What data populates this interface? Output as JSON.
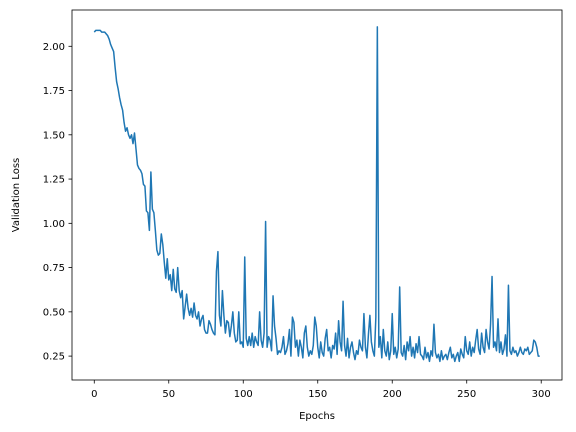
{
  "chart_data": {
    "type": "line",
    "xlabel": "Epochs",
    "ylabel": "Validation Loss",
    "color": "#1f77b4",
    "x": [
      0,
      1,
      2,
      3,
      4,
      5,
      6,
      7,
      8,
      9,
      10,
      11,
      12,
      13,
      14,
      15,
      16,
      17,
      18,
      19,
      20,
      21,
      22,
      23,
      24,
      25,
      26,
      27,
      28,
      29,
      30,
      31,
      32,
      33,
      34,
      35,
      36,
      37,
      38,
      39,
      40,
      41,
      42,
      43,
      44,
      45,
      46,
      47,
      48,
      49,
      50,
      51,
      52,
      53,
      54,
      55,
      56,
      57,
      58,
      59,
      60,
      61,
      62,
      63,
      64,
      65,
      66,
      67,
      68,
      69,
      70,
      71,
      72,
      73,
      74,
      75,
      76,
      77,
      78,
      79,
      80,
      81,
      82,
      83,
      84,
      85,
      86,
      87,
      88,
      89,
      90,
      91,
      92,
      93,
      94,
      95,
      96,
      97,
      98,
      99,
      100,
      101,
      102,
      103,
      104,
      105,
      106,
      107,
      108,
      109,
      110,
      111,
      112,
      113,
      114,
      115,
      116,
      117,
      118,
      119,
      120,
      121,
      122,
      123,
      124,
      125,
      126,
      127,
      128,
      129,
      130,
      131,
      132,
      133,
      134,
      135,
      136,
      137,
      138,
      139,
      140,
      141,
      142,
      143,
      144,
      145,
      146,
      147,
      148,
      149,
      150,
      151,
      152,
      153,
      154,
      155,
      156,
      157,
      158,
      159,
      160,
      161,
      162,
      163,
      164,
      165,
      166,
      167,
      168,
      169,
      170,
      171,
      172,
      173,
      174,
      175,
      176,
      177,
      178,
      179,
      180,
      181,
      182,
      183,
      184,
      185,
      186,
      187,
      188,
      189,
      190,
      191,
      192,
      193,
      194,
      195,
      196,
      197,
      198,
      199,
      200,
      201,
      202,
      203,
      204,
      205,
      206,
      207,
      208,
      209,
      210,
      211,
      212,
      213,
      214,
      215,
      216,
      217,
      218,
      219,
      220,
      221,
      222,
      223,
      224,
      225,
      226,
      227,
      228,
      229,
      230,
      231,
      232,
      233,
      234,
      235,
      236,
      237,
      238,
      239,
      240,
      241,
      242,
      243,
      244,
      245,
      246,
      247,
      248,
      249,
      250,
      251,
      252,
      253,
      254,
      255,
      256,
      257,
      258,
      259,
      260,
      261,
      262,
      263,
      264,
      265,
      266,
      267,
      268,
      269,
      270,
      271,
      272,
      273,
      274,
      275,
      276,
      277,
      278,
      279,
      280,
      281,
      282,
      283,
      284,
      285,
      286,
      287,
      288,
      289,
      290,
      291,
      292,
      293,
      294,
      295,
      296,
      297,
      298,
      299
    ],
    "values": [
      2.08,
      2.09,
      2.09,
      2.09,
      2.09,
      2.08,
      2.08,
      2.08,
      2.07,
      2.06,
      2.04,
      2.01,
      1.99,
      1.97,
      1.88,
      1.8,
      1.76,
      1.71,
      1.67,
      1.64,
      1.57,
      1.52,
      1.54,
      1.5,
      1.48,
      1.5,
      1.45,
      1.51,
      1.42,
      1.33,
      1.31,
      1.3,
      1.28,
      1.22,
      1.21,
      1.07,
      1.06,
      0.96,
      1.29,
      1.08,
      1.06,
      0.96,
      0.85,
      0.82,
      0.83,
      0.94,
      0.88,
      0.78,
      0.69,
      0.8,
      0.68,
      0.71,
      0.62,
      0.74,
      0.63,
      0.61,
      0.75,
      0.62,
      0.58,
      0.62,
      0.46,
      0.53,
      0.6,
      0.52,
      0.48,
      0.52,
      0.47,
      0.55,
      0.48,
      0.46,
      0.5,
      0.42,
      0.46,
      0.48,
      0.4,
      0.38,
      0.38,
      0.45,
      0.43,
      0.4,
      0.38,
      0.37,
      0.73,
      0.84,
      0.48,
      0.42,
      0.62,
      0.48,
      0.38,
      0.45,
      0.44,
      0.36,
      0.42,
      0.5,
      0.38,
      0.33,
      0.34,
      0.5,
      0.32,
      0.33,
      0.3,
      0.81,
      0.35,
      0.31,
      0.36,
      0.31,
      0.38,
      0.3,
      0.36,
      0.33,
      0.31,
      0.5,
      0.34,
      0.3,
      0.38,
      1.01,
      0.3,
      0.36,
      0.34,
      0.28,
      0.59,
      0.42,
      0.35,
      0.26,
      0.28,
      0.27,
      0.3,
      0.36,
      0.26,
      0.28,
      0.32,
      0.4,
      0.25,
      0.47,
      0.44,
      0.3,
      0.34,
      0.25,
      0.34,
      0.3,
      0.24,
      0.38,
      0.42,
      0.3,
      0.25,
      0.28,
      0.26,
      0.31,
      0.47,
      0.42,
      0.3,
      0.24,
      0.33,
      0.27,
      0.25,
      0.35,
      0.4,
      0.28,
      0.3,
      0.24,
      0.31,
      0.29,
      0.38,
      0.26,
      0.45,
      0.33,
      0.28,
      0.56,
      0.31,
      0.25,
      0.35,
      0.24,
      0.3,
      0.33,
      0.27,
      0.23,
      0.28,
      0.26,
      0.34,
      0.3,
      0.28,
      0.49,
      0.3,
      0.24,
      0.37,
      0.48,
      0.33,
      0.28,
      0.25,
      0.47,
      2.11,
      0.3,
      0.36,
      0.24,
      0.4,
      0.28,
      0.25,
      0.33,
      0.23,
      0.28,
      0.49,
      0.26,
      0.3,
      0.24,
      0.29,
      0.64,
      0.27,
      0.25,
      0.31,
      0.23,
      0.33,
      0.28,
      0.36,
      0.25,
      0.3,
      0.24,
      0.32,
      0.27,
      0.36,
      0.26,
      0.25,
      0.23,
      0.3,
      0.24,
      0.27,
      0.22,
      0.28,
      0.25,
      0.43,
      0.27,
      0.24,
      0.26,
      0.22,
      0.28,
      0.23,
      0.25,
      0.26,
      0.23,
      0.27,
      0.3,
      0.24,
      0.26,
      0.22,
      0.25,
      0.27,
      0.22,
      0.29,
      0.26,
      0.24,
      0.36,
      0.28,
      0.26,
      0.33,
      0.25,
      0.3,
      0.27,
      0.34,
      0.4,
      0.29,
      0.26,
      0.38,
      0.3,
      0.27,
      0.4,
      0.33,
      0.29,
      0.43,
      0.7,
      0.3,
      0.33,
      0.28,
      0.46,
      0.27,
      0.33,
      0.26,
      0.29,
      0.37,
      0.25,
      0.65,
      0.28,
      0.26,
      0.3,
      0.27,
      0.28,
      0.25,
      0.27,
      0.3,
      0.27,
      0.26,
      0.29,
      0.28,
      0.3,
      0.26,
      0.27,
      0.28,
      0.34,
      0.33,
      0.3,
      0.25,
      0.25
    ],
    "xlim": [
      -14.95,
      313.95
    ],
    "ylim": [
      0.115,
      2.205
    ],
    "xticks": [
      0,
      50,
      100,
      150,
      200,
      250,
      300
    ],
    "yticks": [
      0.25,
      {
        "value": 0.5,
        "label": "0.50"
      },
      0.75,
      {
        "value": 1.0,
        "label": "1.00"
      },
      1.25,
      {
        "value": 1.5,
        "label": "1.50"
      },
      1.75,
      {
        "value": 2.0,
        "label": "2.00"
      }
    ],
    "grid": false
  }
}
